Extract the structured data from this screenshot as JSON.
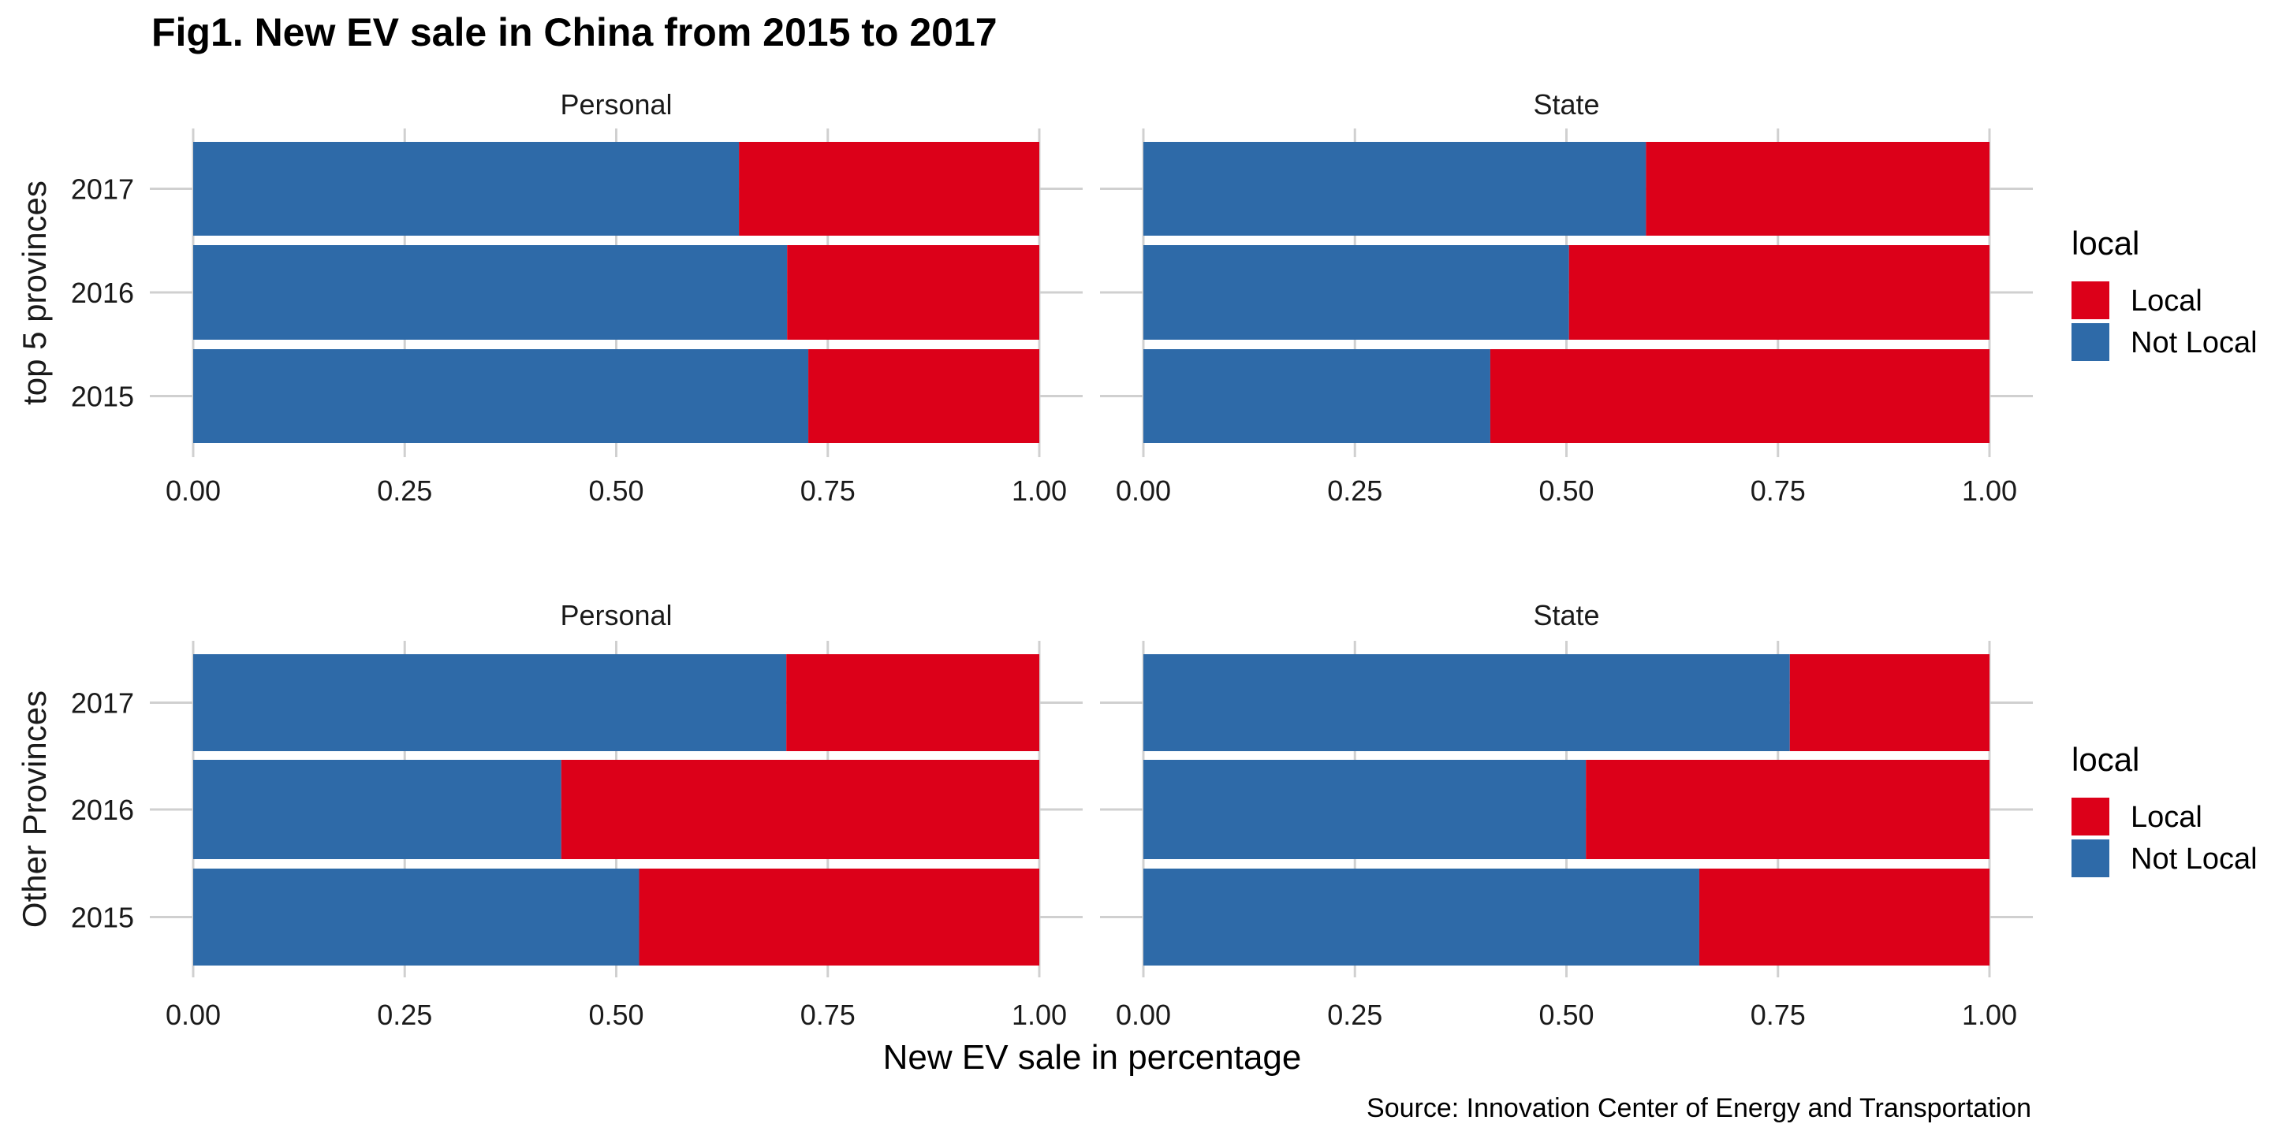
{
  "chart_data": {
    "type": "bar",
    "orientation": "horizontal",
    "stacked": "fill",
    "title": "Fig1. New EV sale in China from 2015 to 2017",
    "xlabel": "New EV sale in percentage",
    "caption": "Source: Innovation Center of Energy and Transportation",
    "xlim": [
      0,
      1
    ],
    "x_ticks": [
      "0.00",
      "0.25",
      "0.50",
      "0.75",
      "1.00"
    ],
    "categories": [
      "2017",
      "2016",
      "2015"
    ],
    "legend": {
      "title": "local",
      "position": "right",
      "items": [
        {
          "label": "Local",
          "color": "#dc0019"
        },
        {
          "label": "Not Local",
          "color": "#2e6aa8"
        }
      ]
    },
    "grid": "major vertical and horizontal",
    "panels": [
      {
        "row": "top 5 provinces",
        "column": "Personal",
        "series": [
          {
            "name": "Not Local",
            "values": [
              0.645,
              0.702,
              0.727
            ]
          },
          {
            "name": "Local",
            "values": [
              0.355,
              0.298,
              0.273
            ]
          }
        ]
      },
      {
        "row": "top 5 provinces",
        "column": "State",
        "series": [
          {
            "name": "Not Local",
            "values": [
              0.594,
              0.503,
              0.41
            ]
          },
          {
            "name": "Local",
            "values": [
              0.406,
              0.497,
              0.59
            ]
          }
        ]
      },
      {
        "row": "Other Provinces",
        "column": "Personal",
        "series": [
          {
            "name": "Not Local",
            "values": [
              0.701,
              0.435,
              0.527
            ]
          },
          {
            "name": "Local",
            "values": [
              0.299,
              0.565,
              0.473
            ]
          }
        ]
      },
      {
        "row": "Other Provinces",
        "column": "State",
        "series": [
          {
            "name": "Not Local",
            "values": [
              0.764,
              0.523,
              0.657
            ]
          },
          {
            "name": "Local",
            "values": [
              0.236,
              0.477,
              0.343
            ]
          }
        ]
      }
    ]
  }
}
